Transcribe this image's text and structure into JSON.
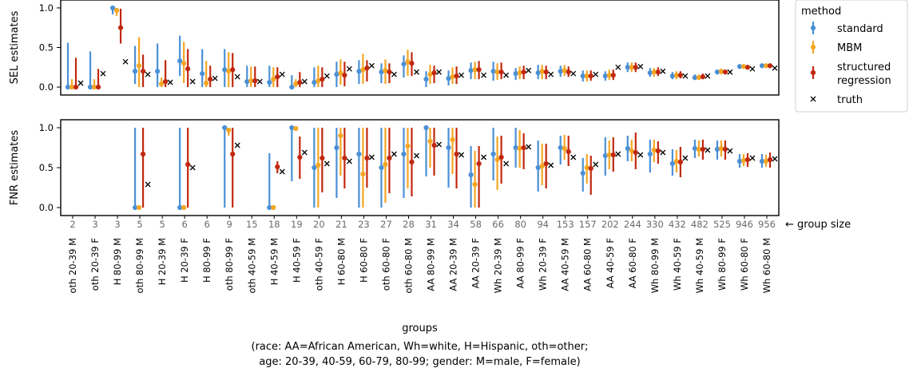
{
  "chart_data": {
    "type": "errorbar",
    "legend": {
      "title": "method",
      "entries": [
        "standard",
        "MBM",
        "structured\nregression",
        "truth"
      ],
      "placement": "outside-top-right"
    },
    "colors": {
      "standard": "#4a90d6",
      "MBM": "#f5a623",
      "structured regression": "#c0280e",
      "truth": "#000000"
    },
    "x": {
      "label": "groups",
      "caption_lines": [
        "(race: AA=African American, Wh=white, H=Hispanic, oth=other;",
        "age: 20-39, 40-59, 60-79, 80-99;  gender: M=male, F=female)"
      ],
      "categories": [
        "oth 20-39 M",
        "oth 20-39 F",
        "H 80-99 M",
        "oth 80-99 M",
        "H 20-39 M",
        "H 20-39 F",
        "H 80-99 F",
        "oth 80-99 F",
        "oth 40-59 M",
        "H 40-59 M",
        "H 40-59 F",
        "oth 40-59 F",
        "H 60-80 M",
        "H 60-80 F",
        "oth 60-80 F",
        "oth 60-80 M",
        "AA 80-99 M",
        "AA 20-39 M",
        "AA 20-39 F",
        "Wh 20-39 M",
        "AA 80-99 F",
        "Wh 20-39 F",
        "AA 40-59 M",
        "AA 60-80 M",
        "AA 40-59 F",
        "AA 60-80 F",
        "Wh 80-99 M",
        "Wh 40-59 F",
        "Wh 40-59 M",
        "Wh 80-99 F",
        "Wh 60-80 F",
        "Wh 60-80 M"
      ],
      "group_sizes": [
        "2",
        "3",
        "3",
        "5",
        "5",
        "6",
        "6",
        "9",
        "15",
        "18",
        "19",
        "20",
        "21",
        "23",
        "27",
        "28",
        "31",
        "34",
        "58",
        "66",
        "80",
        "94",
        "153",
        "157",
        "202",
        "244",
        "330",
        "432",
        "482",
        "525",
        "946",
        "956"
      ],
      "group_size_label": "← group size"
    },
    "panels": [
      {
        "ylabel": "SEL estimates",
        "ylim": [
          -0.1,
          1.1
        ],
        "yticks": [
          "0.0",
          "0.5",
          "1.0"
        ],
        "series": [
          {
            "name": "standard",
            "values": [
              0.0,
              0.0,
              1.0,
              0.2,
              0.2,
              0.33,
              0.17,
              0.22,
              0.07,
              0.06,
              0.0,
              0.06,
              0.16,
              0.2,
              0.19,
              0.29,
              0.1,
              0.11,
              0.21,
              0.2,
              0.17,
              0.18,
              0.2,
              0.14,
              0.14,
              0.25,
              0.18,
              0.14,
              0.12,
              0.19,
              0.26,
              0.27
            ],
            "low": [
              0.0,
              0.0,
              0.92,
              0.04,
              0.0,
              0.14,
              0.0,
              0.0,
              0.0,
              0.0,
              0.0,
              0.0,
              0.0,
              0.04,
              0.05,
              0.12,
              0.0,
              0.02,
              0.1,
              0.08,
              0.09,
              0.1,
              0.13,
              0.07,
              0.08,
              0.19,
              0.13,
              0.1,
              0.09,
              0.16,
              0.23,
              0.24
            ],
            "high": [
              0.56,
              0.45,
              1.0,
              0.52,
              0.55,
              0.65,
              0.48,
              0.48,
              0.27,
              0.27,
              0.15,
              0.25,
              0.32,
              0.34,
              0.3,
              0.4,
              0.2,
              0.21,
              0.31,
              0.32,
              0.24,
              0.28,
              0.27,
              0.21,
              0.2,
              0.31,
              0.24,
              0.19,
              0.16,
              0.22,
              0.29,
              0.3
            ]
          },
          {
            "name": "MBM",
            "values": [
              0.0,
              0.0,
              0.97,
              0.27,
              0.04,
              0.3,
              0.05,
              0.2,
              0.08,
              0.1,
              0.04,
              0.08,
              0.18,
              0.22,
              0.21,
              0.32,
              0.16,
              0.13,
              0.22,
              0.19,
              0.18,
              0.2,
              0.21,
              0.14,
              0.15,
              0.25,
              0.19,
              0.15,
              0.12,
              0.2,
              0.26,
              0.27
            ],
            "low": [
              0.0,
              0.0,
              0.9,
              0.0,
              0.0,
              0.05,
              0.0,
              0.0,
              0.0,
              0.0,
              0.0,
              0.0,
              0.03,
              0.04,
              0.04,
              0.14,
              0.04,
              0.04,
              0.1,
              0.09,
              0.1,
              0.1,
              0.14,
              0.07,
              0.09,
              0.19,
              0.13,
              0.1,
              0.09,
              0.16,
              0.23,
              0.24
            ],
            "high": [
              0.1,
              0.1,
              1.0,
              0.63,
              0.12,
              0.57,
              0.33,
              0.44,
              0.26,
              0.25,
              0.1,
              0.27,
              0.35,
              0.42,
              0.35,
              0.47,
              0.28,
              0.25,
              0.32,
              0.3,
              0.26,
              0.28,
              0.28,
              0.21,
              0.22,
              0.31,
              0.24,
              0.2,
              0.16,
              0.23,
              0.29,
              0.3
            ]
          },
          {
            "name": "structured regression",
            "values": [
              0.0,
              0.0,
              0.75,
              0.2,
              0.07,
              0.23,
              0.1,
              0.22,
              0.08,
              0.13,
              0.06,
              0.1,
              0.15,
              0.24,
              0.19,
              0.3,
              0.18,
              0.14,
              0.22,
              0.19,
              0.19,
              0.19,
              0.19,
              0.14,
              0.15,
              0.25,
              0.19,
              0.15,
              0.13,
              0.19,
              0.25,
              0.27
            ],
            "low": [
              0.0,
              0.0,
              0.55,
              0.0,
              0.0,
              0.0,
              0.0,
              0.0,
              0.0,
              0.0,
              0.0,
              0.0,
              0.01,
              0.07,
              0.05,
              0.14,
              0.05,
              0.04,
              0.1,
              0.1,
              0.1,
              0.1,
              0.13,
              0.08,
              0.09,
              0.19,
              0.14,
              0.11,
              0.1,
              0.16,
              0.23,
              0.24
            ],
            "high": [
              0.37,
              0.23,
              0.99,
              0.41,
              0.34,
              0.48,
              0.27,
              0.43,
              0.26,
              0.25,
              0.19,
              0.25,
              0.32,
              0.34,
              0.3,
              0.44,
              0.27,
              0.26,
              0.33,
              0.31,
              0.27,
              0.27,
              0.26,
              0.21,
              0.22,
              0.31,
              0.25,
              0.2,
              0.17,
              0.22,
              0.28,
              0.3
            ]
          },
          {
            "name": "truth",
            "values": [
              0.05,
              0.17,
              0.32,
              0.16,
              0.06,
              0.07,
              0.11,
              0.13,
              0.07,
              0.16,
              0.07,
              0.14,
              0.23,
              0.27,
              0.16,
              0.19,
              0.19,
              0.15,
              0.15,
              0.15,
              0.21,
              0.16,
              0.17,
              0.16,
              0.25,
              0.26,
              0.2,
              0.14,
              0.14,
              0.19,
              0.23,
              0.24
            ]
          }
        ]
      },
      {
        "ylabel": "FNR estimates",
        "ylim": [
          -0.1,
          1.1
        ],
        "yticks": [
          "0.0",
          "0.5",
          "1.0"
        ],
        "series": [
          {
            "name": "standard",
            "values": [
              null,
              null,
              null,
              0.0,
              null,
              0.0,
              null,
              1.0,
              null,
              0.0,
              1.0,
              0.5,
              0.75,
              0.67,
              0.5,
              0.67,
              1.0,
              0.75,
              0.41,
              0.67,
              0.75,
              0.5,
              0.75,
              0.43,
              0.65,
              0.74,
              0.67,
              0.55,
              0.74,
              0.73,
              0.58,
              0.58
            ],
            "low": [
              null,
              null,
              null,
              0.0,
              null,
              0.0,
              null,
              0.0,
              null,
              0.0,
              0.33,
              0.0,
              0.12,
              0.0,
              0.0,
              0.12,
              0.39,
              0.25,
              0.0,
              0.34,
              0.5,
              0.2,
              0.54,
              0.2,
              0.4,
              0.58,
              0.44,
              0.4,
              0.62,
              0.6,
              0.5,
              0.5
            ],
            "high": [
              null,
              null,
              null,
              1.0,
              null,
              1.0,
              null,
              1.0,
              null,
              0.68,
              1.0,
              1.0,
              1.0,
              1.0,
              1.0,
              1.0,
              1.0,
              1.0,
              0.77,
              1.0,
              1.0,
              0.84,
              0.9,
              0.62,
              0.88,
              0.9,
              0.85,
              0.73,
              0.85,
              0.84,
              0.67,
              0.67
            ]
          },
          {
            "name": "MBM",
            "values": [
              null,
              null,
              null,
              0.0,
              null,
              0.0,
              null,
              0.97,
              null,
              0.0,
              0.99,
              0.53,
              0.9,
              0.42,
              0.54,
              0.77,
              0.83,
              0.85,
              0.29,
              0.6,
              0.74,
              0.52,
              0.74,
              0.5,
              0.66,
              0.71,
              0.72,
              0.58,
              0.73,
              0.74,
              0.59,
              0.58
            ],
            "low": [
              null,
              null,
              null,
              0.0,
              null,
              0.0,
              null,
              0.9,
              null,
              0.0,
              0.97,
              0.0,
              0.4,
              0.0,
              0.06,
              0.24,
              0.5,
              0.42,
              0.0,
              0.22,
              0.5,
              0.28,
              0.6,
              0.3,
              0.48,
              0.58,
              0.57,
              0.44,
              0.64,
              0.64,
              0.52,
              0.51
            ],
            "high": [
              null,
              null,
              null,
              0.0,
              null,
              0.0,
              null,
              1.0,
              null,
              0.0,
              1.0,
              1.0,
              1.0,
              1.0,
              1.0,
              1.0,
              1.0,
              1.0,
              0.71,
              0.89,
              0.97,
              0.8,
              0.91,
              0.67,
              0.84,
              0.85,
              0.85,
              0.72,
              0.84,
              0.84,
              0.67,
              0.66
            ]
          },
          {
            "name": "structured regression",
            "values": [
              null,
              null,
              null,
              0.67,
              null,
              0.54,
              null,
              0.67,
              null,
              0.51,
              0.63,
              0.62,
              0.62,
              0.62,
              0.62,
              0.57,
              0.78,
              0.67,
              0.55,
              0.63,
              0.75,
              0.55,
              0.7,
              0.49,
              0.66,
              0.69,
              0.71,
              0.57,
              0.73,
              0.73,
              0.6,
              0.6
            ],
            "low": [
              null,
              null,
              null,
              0.0,
              null,
              0.0,
              null,
              0.0,
              null,
              0.43,
              0.36,
              0.19,
              0.24,
              0.25,
              0.18,
              0.14,
              0.4,
              0.24,
              0.0,
              0.3,
              0.48,
              0.24,
              0.52,
              0.16,
              0.45,
              0.48,
              0.55,
              0.38,
              0.6,
              0.6,
              0.51,
              0.5
            ],
            "high": [
              null,
              null,
              null,
              1.0,
              null,
              1.0,
              null,
              1.0,
              null,
              0.58,
              0.89,
              1.0,
              1.0,
              1.0,
              1.0,
              1.0,
              1.0,
              1.0,
              0.77,
              0.9,
              0.93,
              0.8,
              0.9,
              0.65,
              0.88,
              0.94,
              0.83,
              0.76,
              0.85,
              0.84,
              0.68,
              0.69
            ]
          },
          {
            "name": "truth",
            "values": [
              null,
              null,
              null,
              0.29,
              null,
              0.5,
              null,
              0.78,
              null,
              0.45,
              0.69,
              0.55,
              0.58,
              0.63,
              0.67,
              0.65,
              0.79,
              0.66,
              0.63,
              0.55,
              0.76,
              0.53,
              0.63,
              0.54,
              0.67,
              0.66,
              0.69,
              0.62,
              0.72,
              0.71,
              0.62,
              0.61
            ]
          }
        ]
      }
    ]
  }
}
